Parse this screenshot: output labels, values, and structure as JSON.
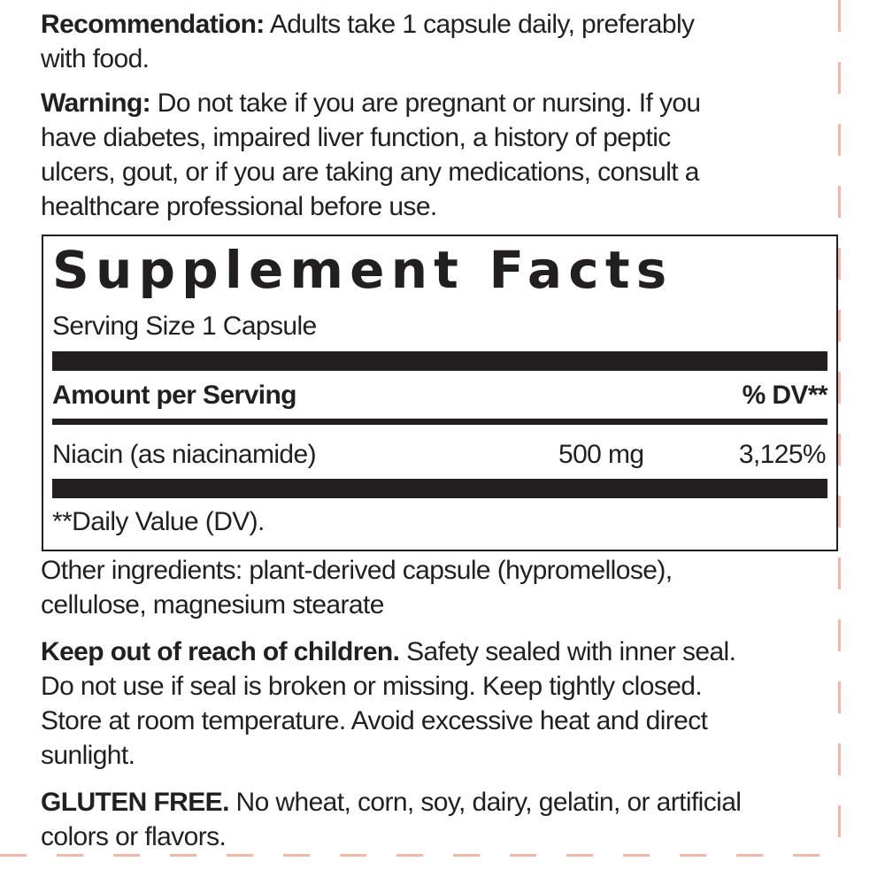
{
  "recommendation": {
    "label": "Recommendation:",
    "lines": [
      " Adults take 1 capsule daily, preferably",
      "with food."
    ]
  },
  "warning": {
    "label": "Warning:",
    "lines": [
      " Do not take if you are pregnant or nursing.  If you",
      "have diabetes, impaired liver function, a history of peptic",
      "ulcers, gout, or if you are taking any medications, consult a",
      "healthcare professional before use."
    ]
  },
  "facts": {
    "title": "Supplement Facts",
    "serving_size": "Serving Size 1 Capsule",
    "amount_header": "Amount per Serving",
    "dv_header": "% DV**",
    "rows": [
      {
        "name": "Niacin (as niacinamide)",
        "amount": "500 mg",
        "dv": "3,125%"
      }
    ],
    "footnote": "**Daily Value (DV)."
  },
  "other_ingredients": {
    "lines": [
      "Other ingredients: plant-derived capsule (hypromellose),",
      "cellulose, magnesium stearate"
    ]
  },
  "keep_out": {
    "label": "Keep out of reach of children.",
    "lines": [
      " Safety sealed with inner seal.",
      "Do not use if seal is broken or missing. Keep tightly closed.",
      "Store at room temperature. Avoid excessive heat and direct",
      "sunlight."
    ]
  },
  "gluten_free": {
    "label": "GLUTEN FREE.",
    "lines": [
      " No wheat, corn, soy, dairy, gelatin, or artificial",
      "colors or flavors."
    ]
  },
  "colors": {
    "text": "#231f20",
    "cut_line": "#f4b7a6"
  }
}
